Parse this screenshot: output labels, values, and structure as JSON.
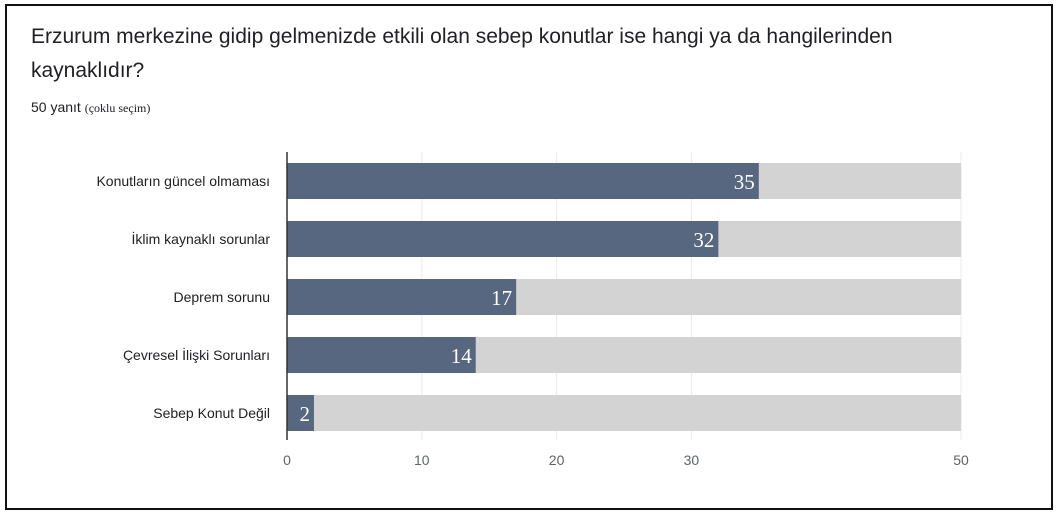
{
  "question": {
    "title": "Erzurum merkezine gidip gelmenizde etkili olan sebep konutlar ise hangi ya da hangilerinden kaynaklıdır?",
    "responses": "50 yanıt",
    "responses_note": "(çoklu seçim)"
  },
  "colors": {
    "bar": "#56677f",
    "track": "#d3d3d3",
    "grid": "#ebebeb",
    "axis": "#333333"
  },
  "chart_data": {
    "type": "bar",
    "orientation": "horizontal",
    "categories": [
      "Konutların güncel olmaması",
      "İklim kaynaklı sorunlar",
      "Deprem sorunu",
      "Çevresel İlişki Sorunları",
      "Sebep Konut Değil"
    ],
    "values": [
      35,
      32,
      17,
      14,
      2
    ],
    "xlim": [
      0,
      50
    ],
    "xticks": [
      0,
      10,
      20,
      30,
      50
    ],
    "title": "",
    "xlabel": "",
    "ylabel": "",
    "grid": true,
    "legend": "none"
  }
}
